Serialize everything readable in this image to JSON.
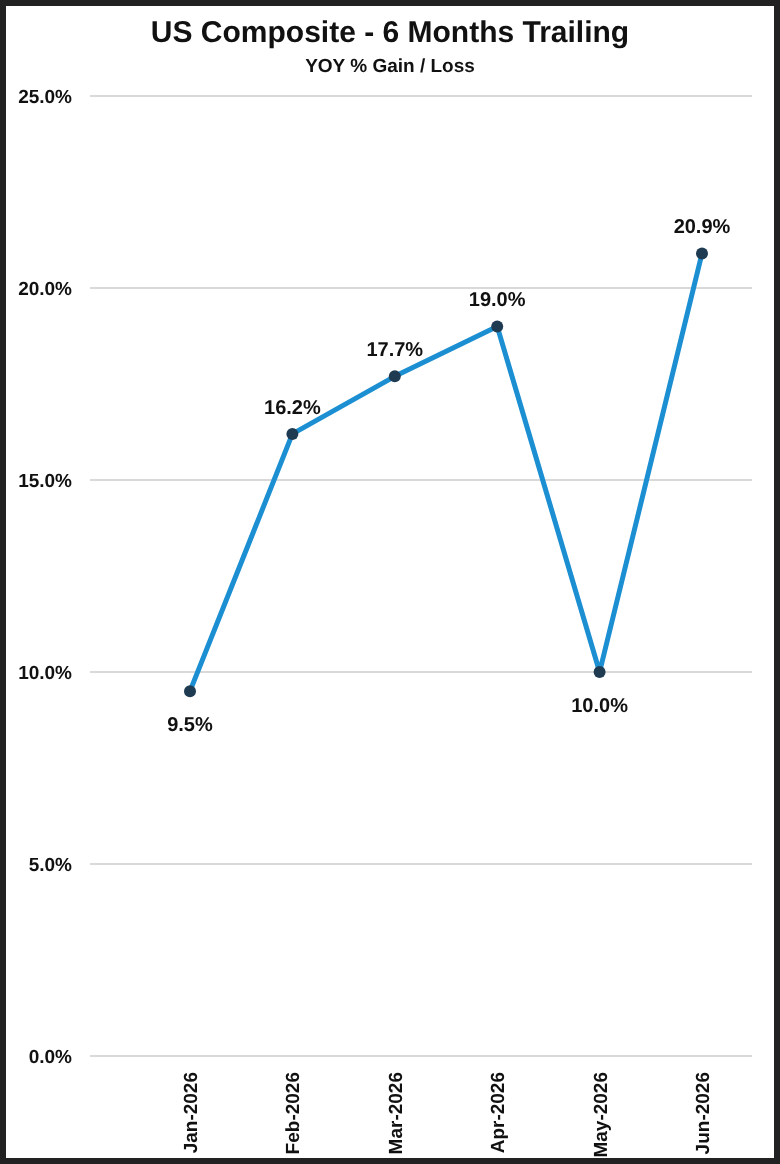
{
  "chart_data": {
    "type": "line",
    "title": "US Composite - 6 Months Trailing",
    "subtitle": "YOY % Gain / Loss",
    "categories": [
      "Jan-2026",
      "Feb-2026",
      "Mar-2026",
      "Apr-2026",
      "May-2026",
      "Jun-2026"
    ],
    "series": [
      {
        "color": "#1b8fd2",
        "values": [
          9.5,
          16.2,
          17.7,
          19.0,
          10.0,
          20.9
        ]
      }
    ],
    "ylim": [
      0,
      25
    ],
    "yticks": [
      {
        "value": 0,
        "label": "0.0%"
      },
      {
        "value": 5,
        "label": "5.0%"
      },
      {
        "value": 10,
        "label": "10.0%"
      },
      {
        "value": 15,
        "label": "15.0%"
      },
      {
        "value": 20,
        "label": "20.0%"
      },
      {
        "value": 25,
        "label": "25.0%"
      }
    ],
    "grid": "y",
    "marker": "circle",
    "line_style": "solid",
    "value_labels": [
      "9.5%",
      "16.2%",
      "17.7%",
      "19.0%",
      "10.0%",
      "20.9%"
    ]
  }
}
